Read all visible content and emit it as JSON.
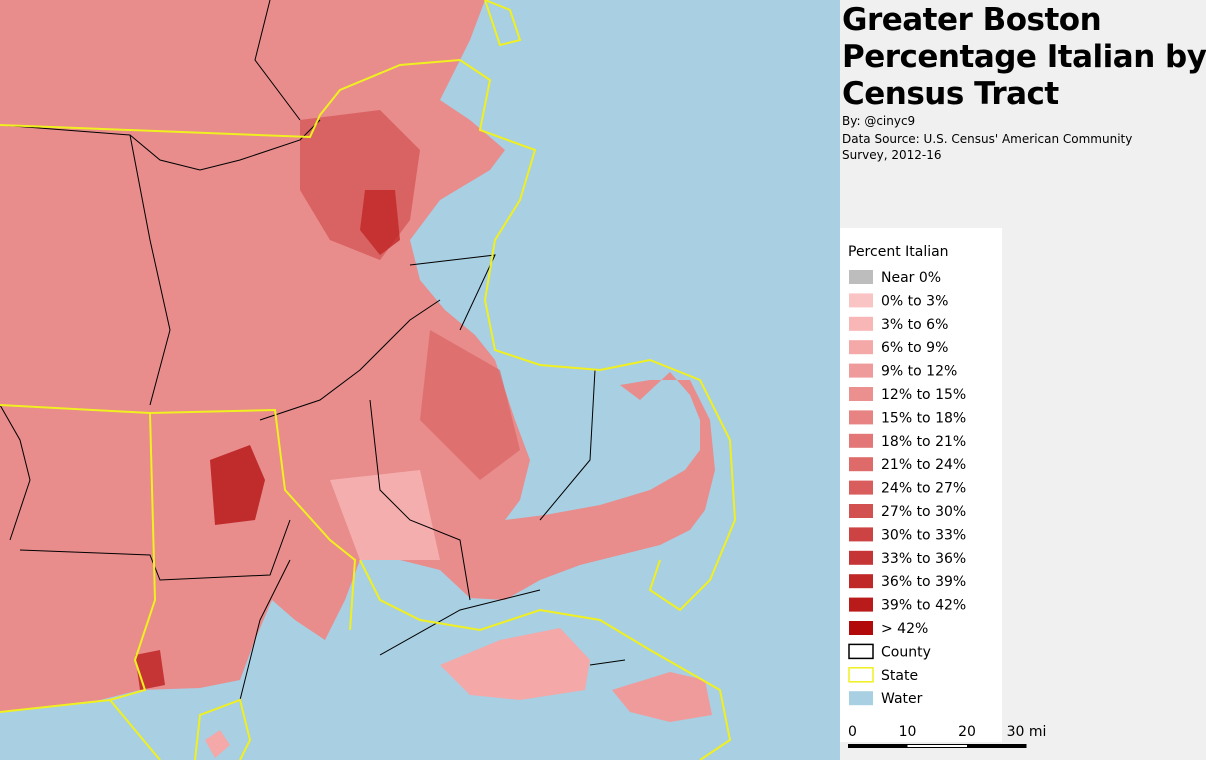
{
  "title": [
    "Greater Boston",
    "Percentage Italian by",
    "Census Tract"
  ],
  "byline": "By: @cinyc9",
  "source": "Data Source: U.S. Census' American Community Survey, 2012-16",
  "legend": {
    "title": "Percent Italian",
    "items": [
      {
        "label": "Near 0%",
        "color": "#bdbdbd",
        "style": "fill"
      },
      {
        "label": "0% to 3%",
        "color": "#fbc4c4",
        "style": "fill"
      },
      {
        "label": "3% to 6%",
        "color": "#f8b6b6",
        "style": "fill"
      },
      {
        "label": "6% to 9%",
        "color": "#f4a8a8",
        "style": "fill"
      },
      {
        "label": "9% to 12%",
        "color": "#f09b9b",
        "style": "fill"
      },
      {
        "label": "12% to 15%",
        "color": "#ec8f8f",
        "style": "fill"
      },
      {
        "label": "15% to 18%",
        "color": "#e78383",
        "style": "fill"
      },
      {
        "label": "18% to 21%",
        "color": "#e37777",
        "style": "fill"
      },
      {
        "label": "21% to 24%",
        "color": "#de6a6a",
        "style": "fill"
      },
      {
        "label": "24% to 27%",
        "color": "#d95d5d",
        "style": "fill"
      },
      {
        "label": "27% to 30%",
        "color": "#d35050",
        "style": "fill"
      },
      {
        "label": "30% to 33%",
        "color": "#cd4343",
        "style": "fill"
      },
      {
        "label": "33% to 36%",
        "color": "#c63535",
        "style": "fill"
      },
      {
        "label": "36% to 39%",
        "color": "#c02727",
        "style": "fill"
      },
      {
        "label": "39% to 42%",
        "color": "#b91a1a",
        "style": "fill"
      },
      {
        "label": "> 42%",
        "color": "#b20a0a",
        "style": "fill"
      },
      {
        "label": "County",
        "color": "#000000",
        "style": "outline"
      },
      {
        "label": "State",
        "color": "#f0f020",
        "style": "outline"
      },
      {
        "label": "Water",
        "color": "#a8cfe2",
        "style": "fill"
      }
    ]
  },
  "scale_bar": [
    "0",
    "10",
    "20",
    "30 mi"
  ]
}
